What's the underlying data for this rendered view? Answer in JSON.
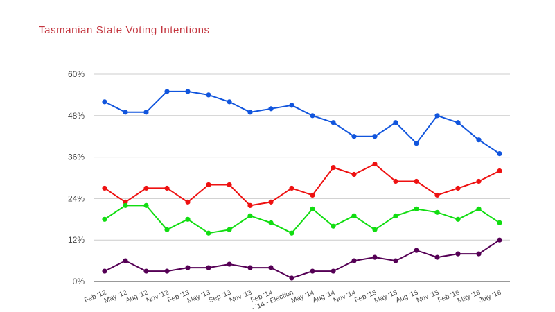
{
  "chart_data": {
    "type": "line",
    "title": "Tasmanian State Voting Intentions",
    "xlabel": "",
    "ylabel": "",
    "ylim": [
      0,
      60
    ],
    "yticks": [
      "0%",
      "12%",
      "24%",
      "36%",
      "48%",
      "60%"
    ],
    "ytick_values": [
      0,
      12,
      24,
      36,
      48,
      60
    ],
    "grid": true,
    "legend": "none",
    "categories": [
      "Feb '12",
      "May '12",
      "Aug '12",
      "Nov '12",
      "Feb '13",
      "May '13",
      "Sep '13",
      "Nov '13",
      "Feb '14",
      "- '14 - Election",
      "May '14",
      "Aug '14",
      "Nov '14",
      "Feb '15",
      "May '15",
      "Aug '15",
      "Nov '15",
      "Feb '16",
      "May '16",
      "July '16"
    ],
    "series": [
      {
        "color": "#1155dd",
        "values": [
          52,
          49,
          49,
          55,
          55,
          54,
          52,
          49,
          50,
          51,
          48,
          46,
          42,
          42,
          46,
          40,
          48,
          46,
          41,
          37
        ]
      },
      {
        "color": "#ee1111",
        "values": [
          27,
          23,
          27,
          27,
          23,
          28,
          28,
          22,
          23,
          27,
          25,
          33,
          31,
          34,
          29,
          29,
          25,
          27,
          29,
          32
        ]
      },
      {
        "color": "#11dd11",
        "values": [
          18,
          22,
          22,
          15,
          18,
          14,
          15,
          19,
          17,
          14,
          21,
          16,
          19,
          15,
          19,
          21,
          20,
          18,
          21,
          17
        ]
      },
      {
        "color": "#550055",
        "values": [
          3,
          6,
          3,
          3,
          4,
          4,
          5,
          4,
          4,
          1,
          3,
          3,
          6,
          7,
          6,
          9,
          7,
          8,
          8,
          12
        ]
      }
    ]
  },
  "colors": {
    "title": "#c4363f",
    "grid": "#cccccc",
    "axis": "#333333",
    "tick_text": "#444444"
  }
}
